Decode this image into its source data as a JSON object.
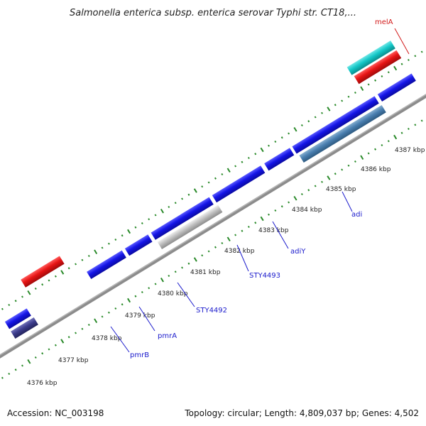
{
  "title": "Salmonella enterica subsp. enterica serovar Typhi str. CT18,...",
  "footer": {
    "accession": "Accession: NC_003198",
    "topology": "Topology: circular; Length: 4,809,037 bp; Genes: 4,502"
  },
  "ticks": [
    "4376 kbp",
    "4377 kbp",
    "4378 kbp",
    "4379 kbp",
    "4380 kbp",
    "4381 kbp",
    "4382 kbp",
    "4383 kbp",
    "4384 kbp",
    "4385 kbp",
    "4386 kbp",
    "4387 kbp"
  ],
  "gene_labels": {
    "melA": "melA",
    "adi": "adi",
    "adiY": "adiY",
    "sty4493": "STY4493",
    "sty4492": "STY4492",
    "pmrA": "pmrA",
    "pmrB": "pmrB"
  },
  "colors": {
    "forward_cds": "#1414e6",
    "reverse_cds": "#1414e6",
    "highlight_red": "#e61414",
    "highlight_cyan": "#14c8c8",
    "steel_blue": "#4a7fb0",
    "grey_gene": "#c0c0c0",
    "dark_purple": "#3c3c8c",
    "backbone": "#888888",
    "dotted_ring": "#2a8a2a",
    "gene_label": "#1a1acc",
    "red_label": "#d21a1a"
  }
}
